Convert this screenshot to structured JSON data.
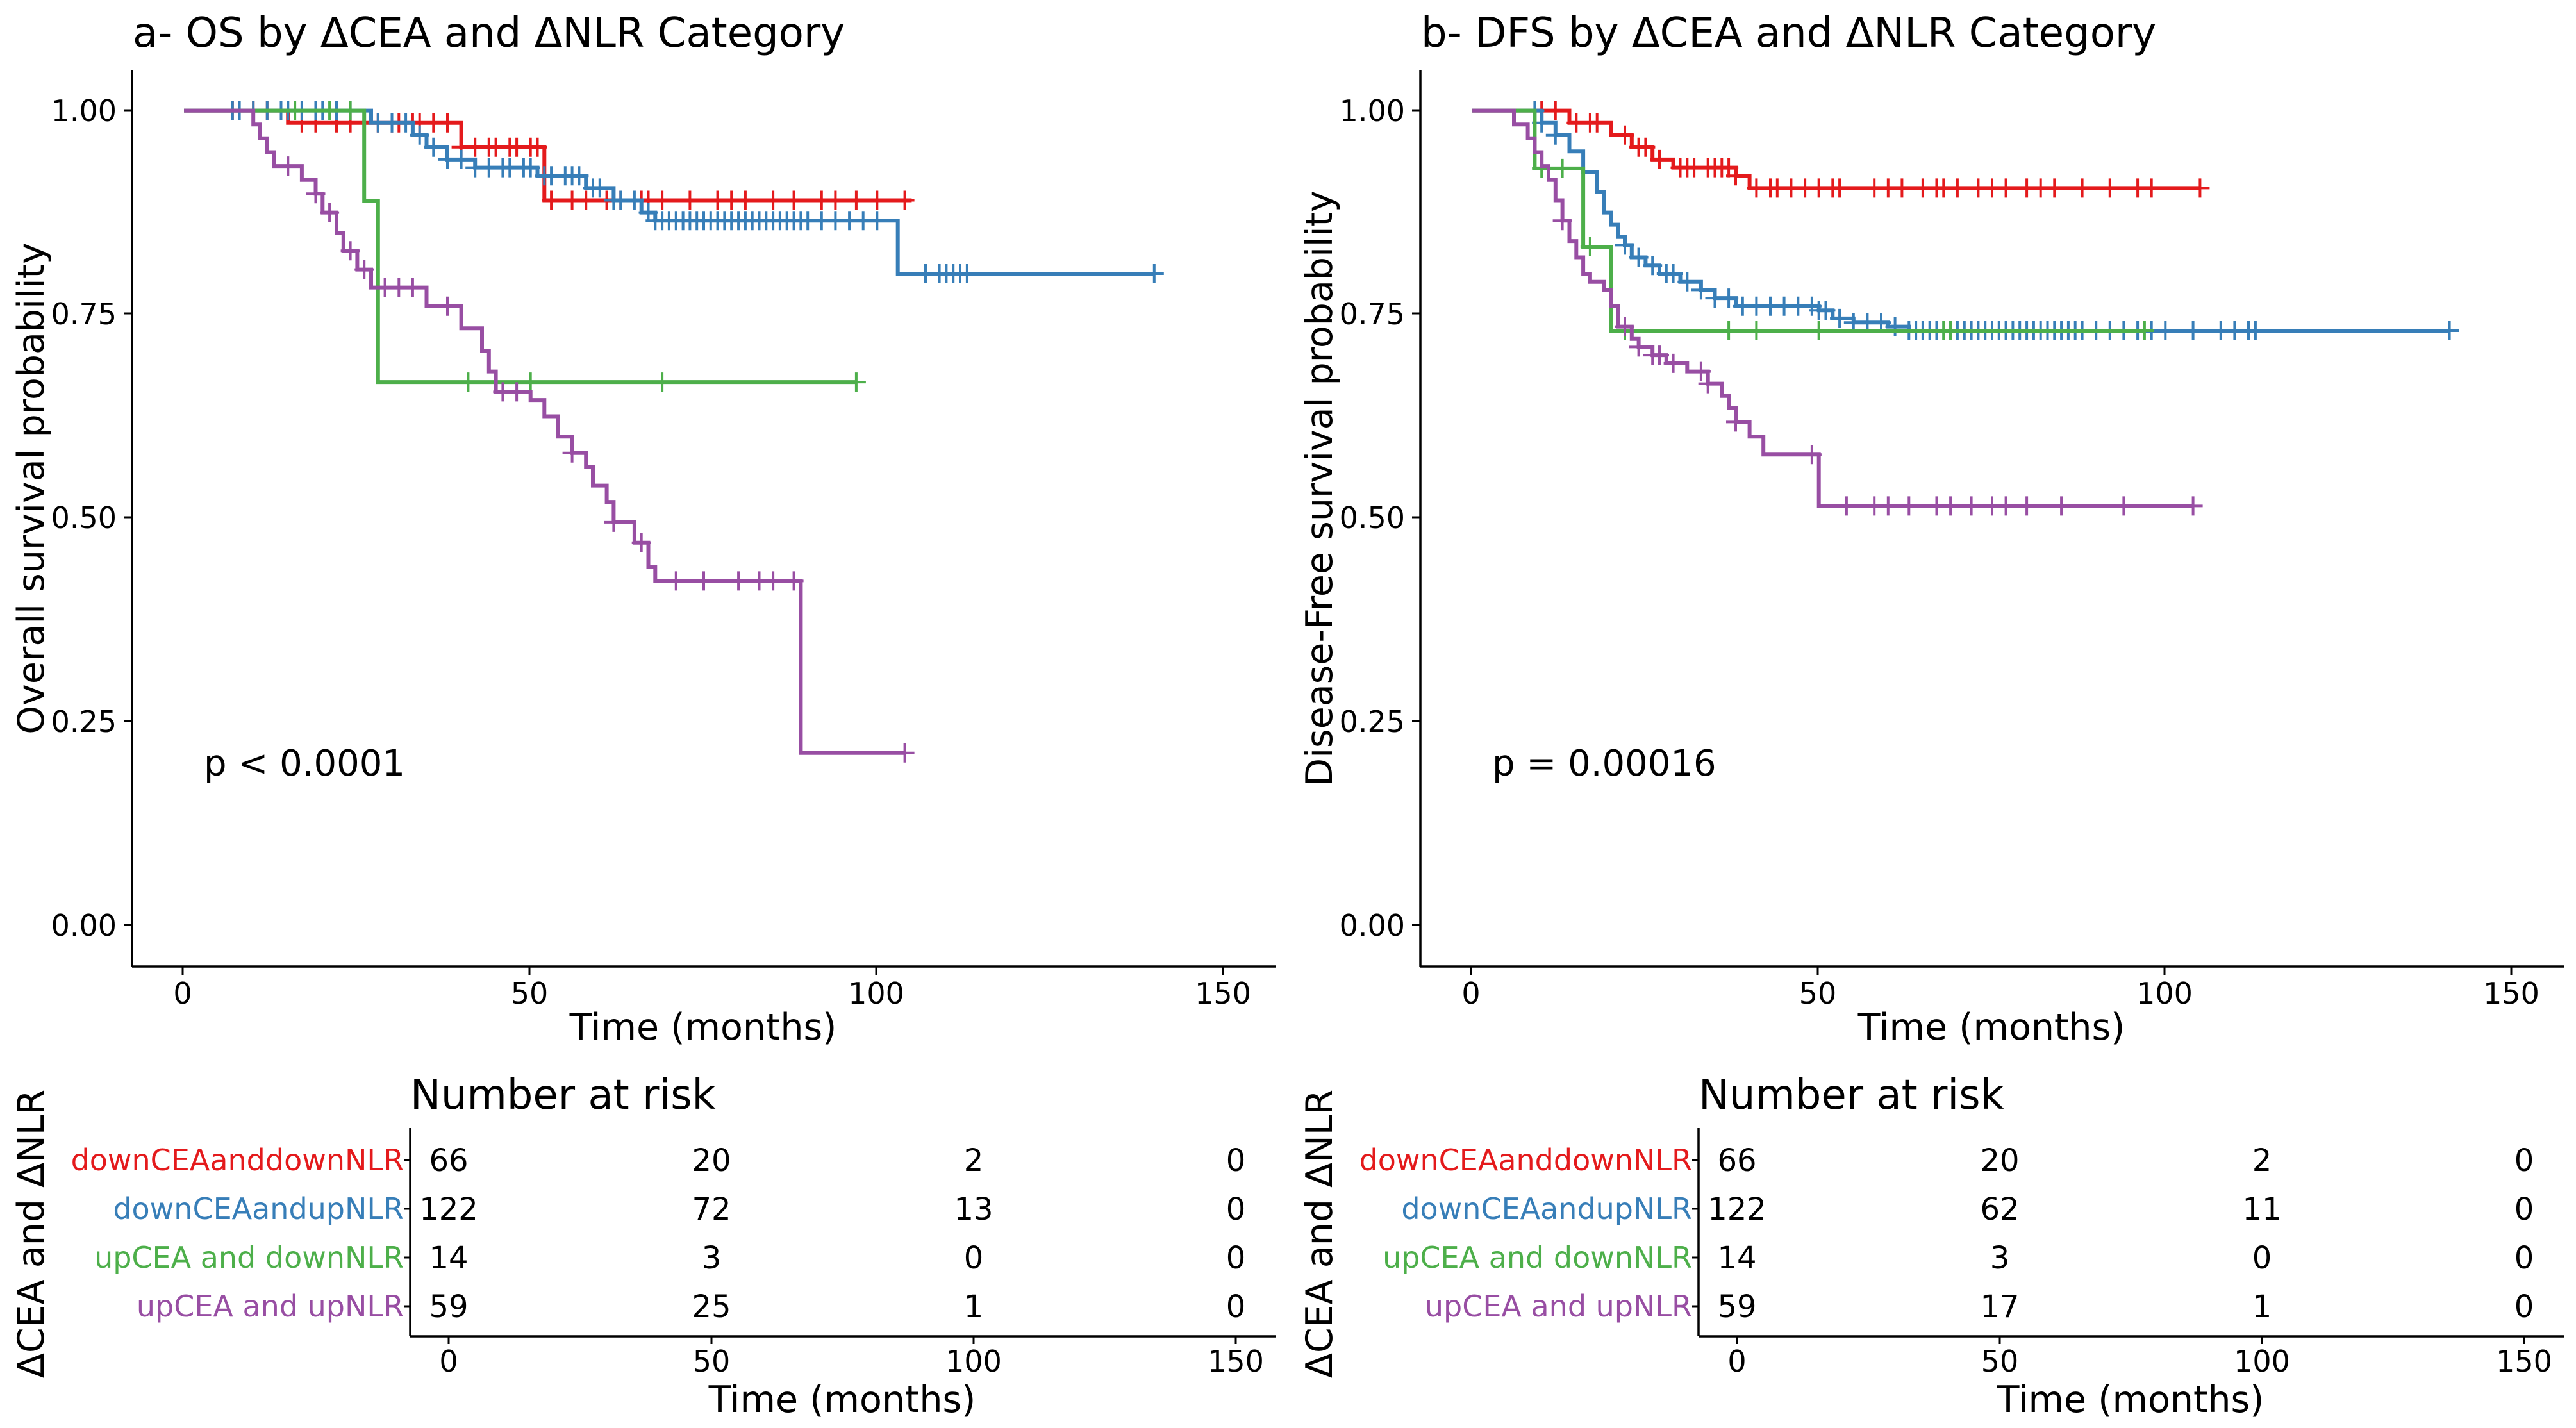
{
  "chart_data": [
    {
      "type": "line",
      "subtype": "kaplan-meier",
      "title": "a- OS by ΔCEA and ΔNLR Category",
      "xlabel": "Time (months)",
      "ylabel": "Overall survival probability",
      "xlim": [
        -7.5,
        157.5
      ],
      "ylim": [
        -0.05,
        1.05
      ],
      "xticks": [
        "0",
        "50",
        "100",
        "150"
      ],
      "yticks": [
        "0.00",
        "0.25",
        "0.50",
        "0.75",
        "1.00"
      ],
      "pvalue": "p < 0.0001",
      "series": [
        {
          "name": "downCEAanddownNLR",
          "color": "#e41a1c",
          "steps": [
            [
              0,
              1
            ],
            [
              15,
              0.985
            ],
            [
              40,
              0.955
            ],
            [
              52,
              0.89
            ],
            [
              105,
              0.89
            ]
          ],
          "censors": [
            7,
            10,
            12,
            17,
            19,
            22,
            24,
            26,
            28,
            30,
            31,
            33,
            34,
            36,
            38,
            40,
            42,
            44,
            45,
            47,
            48,
            50,
            51,
            53,
            56,
            58,
            61,
            63,
            66,
            67,
            69,
            73,
            77,
            79,
            81,
            85,
            88,
            92,
            94,
            97,
            100,
            104
          ]
        },
        {
          "name": "downCEAandupNLR",
          "color": "#377eb8",
          "steps": [
            [
              0,
              1
            ],
            [
              27,
              0.985
            ],
            [
              33,
              0.97
            ],
            [
              35,
              0.955
            ],
            [
              38,
              0.94
            ],
            [
              42,
              0.93
            ],
            [
              51,
              0.92
            ],
            [
              58,
              0.905
            ],
            [
              62,
              0.89
            ],
            [
              66,
              0.875
            ],
            [
              68,
              0.865
            ],
            [
              103,
              0.8
            ],
            [
              140,
              0.8
            ]
          ],
          "censors": [
            7,
            8,
            10,
            12,
            14,
            15,
            17,
            19,
            20,
            22,
            24,
            28,
            30,
            32,
            34,
            36,
            38,
            40,
            42,
            44,
            46,
            47,
            49,
            50,
            52,
            53,
            55,
            56,
            57,
            59,
            60,
            62,
            63,
            65,
            67,
            68,
            69,
            70,
            71,
            72,
            73,
            74,
            75,
            76,
            77,
            78,
            79,
            80,
            81,
            82,
            83,
            84,
            85,
            86,
            87,
            88,
            89,
            90,
            92,
            94,
            96,
            98,
            100,
            107,
            109,
            110,
            111,
            112,
            113,
            140
          ]
        },
        {
          "name": "upCEAanddownNLR",
          "color": "#4daf4a",
          "steps": [
            [
              0,
              1
            ],
            [
              26,
              0.889
            ],
            [
              28,
              0.667
            ],
            [
              97,
              0.667
            ]
          ],
          "censors": [
            16,
            21,
            24,
            41,
            50,
            69,
            97
          ]
        },
        {
          "name": "upCEAandupNLR",
          "color": "#984ea3",
          "steps": [
            [
              0,
              1
            ],
            [
              10,
              0.983
            ],
            [
              11,
              0.966
            ],
            [
              12,
              0.949
            ],
            [
              13,
              0.932
            ],
            [
              17,
              0.915
            ],
            [
              19,
              0.898
            ],
            [
              20,
              0.875
            ],
            [
              22,
              0.85
            ],
            [
              23,
              0.828
            ],
            [
              25,
              0.805
            ],
            [
              27,
              0.783
            ],
            [
              35,
              0.76
            ],
            [
              40,
              0.733
            ],
            [
              43,
              0.705
            ],
            [
              44,
              0.68
            ],
            [
              45,
              0.655
            ],
            [
              50,
              0.645
            ],
            [
              52,
              0.625
            ],
            [
              54,
              0.6
            ],
            [
              56,
              0.58
            ],
            [
              58,
              0.563
            ],
            [
              59,
              0.54
            ],
            [
              61,
              0.52
            ],
            [
              62,
              0.495
            ],
            [
              65,
              0.47
            ],
            [
              67,
              0.44
            ],
            [
              68,
              0.423
            ],
            [
              89,
              0.212
            ],
            [
              104,
              0.212
            ]
          ],
          "censors": [
            15,
            19,
            21,
            24,
            26,
            29,
            31,
            33,
            38,
            46,
            48,
            56,
            62,
            66,
            71,
            75,
            80,
            83,
            85,
            88,
            104
          ]
        }
      ],
      "risk_table": {
        "title": "Number at risk",
        "xlabel": "Time (months)",
        "ylabel": "ΔCEA and ΔNLR",
        "times": [
          "0",
          "50",
          "100",
          "150"
        ],
        "rows": [
          {
            "label": "downCEAanddownNLR",
            "counts": [
              "66",
              "20",
              "2",
              "0"
            ]
          },
          {
            "label": "downCEAandupNLR",
            "counts": [
              "122",
              "72",
              "13",
              "0"
            ]
          },
          {
            "label": "upCEA and downNLR",
            "counts": [
              "14",
              "3",
              "0",
              "0"
            ]
          },
          {
            "label": "upCEA and upNLR",
            "counts": [
              "59",
              "25",
              "1",
              "0"
            ]
          }
        ]
      }
    },
    {
      "type": "line",
      "subtype": "kaplan-meier",
      "title": "b- DFS by ΔCEA and ΔNLR Category",
      "xlabel": "Time (months)",
      "ylabel": "Disease-Free survival probability",
      "xlim": [
        -7.5,
        157.5
      ],
      "ylim": [
        -0.05,
        1.05
      ],
      "xticks": [
        "0",
        "50",
        "100",
        "150"
      ],
      "yticks": [
        "0.00",
        "0.25",
        "0.50",
        "0.75",
        "1.00"
      ],
      "pvalue": "p = 0.00016",
      "series": [
        {
          "name": "downCEAanddownNLR",
          "color": "#e41a1c",
          "steps": [
            [
              0,
              1
            ],
            [
              14,
              0.985
            ],
            [
              20,
              0.97
            ],
            [
              23,
              0.955
            ],
            [
              26,
              0.94
            ],
            [
              29,
              0.93
            ],
            [
              38,
              0.92
            ],
            [
              40,
              0.905
            ],
            [
              105,
              0.905
            ]
          ],
          "censors": [
            10,
            12,
            15,
            17,
            18,
            22,
            24,
            25,
            27,
            30,
            31,
            32,
            34,
            35,
            36,
            37,
            38,
            41,
            43,
            44,
            46,
            48,
            50,
            52,
            53,
            58,
            60,
            62,
            65,
            67,
            68,
            70,
            73,
            75,
            77,
            80,
            82,
            84,
            88,
            92,
            96,
            98,
            105
          ]
        },
        {
          "name": "downCEAandupNLR",
          "color": "#377eb8",
          "steps": [
            [
              0,
              1
            ],
            [
              10,
              0.985
            ],
            [
              12,
              0.97
            ],
            [
              14,
              0.95
            ],
            [
              16,
              0.925
            ],
            [
              18,
              0.9
            ],
            [
              19,
              0.875
            ],
            [
              20,
              0.86
            ],
            [
              21,
              0.845
            ],
            [
              22,
              0.835
            ],
            [
              23,
              0.82
            ],
            [
              25,
              0.81
            ],
            [
              27,
              0.8
            ],
            [
              30,
              0.79
            ],
            [
              33,
              0.78
            ],
            [
              35,
              0.77
            ],
            [
              38,
              0.76
            ],
            [
              50,
              0.755
            ],
            [
              52,
              0.745
            ],
            [
              55,
              0.74
            ],
            [
              60,
              0.735
            ],
            [
              63,
              0.73
            ],
            [
              141,
              0.73
            ]
          ],
          "censors": [
            9,
            10,
            12,
            22,
            24,
            26,
            28,
            29,
            31,
            33,
            35,
            37,
            39,
            41,
            43,
            45,
            47,
            49,
            50,
            51,
            53,
            55,
            57,
            59,
            61,
            63,
            64,
            65,
            66,
            67,
            68,
            69,
            70,
            71,
            72,
            73,
            74,
            75,
            76,
            77,
            78,
            79,
            80,
            81,
            82,
            83,
            84,
            85,
            86,
            87,
            88,
            90,
            92,
            94,
            96,
            98,
            100,
            104,
            108,
            110,
            112,
            113,
            141
          ]
        },
        {
          "name": "upCEAanddownNLR",
          "color": "#4daf4a",
          "steps": [
            [
              0,
              1
            ],
            [
              9,
              0.929
            ],
            [
              16,
              0.833
            ],
            [
              20,
              0.73
            ],
            [
              97,
              0.73
            ]
          ],
          "censors": [
            10,
            13,
            17,
            22,
            37,
            41,
            50,
            68,
            69,
            97
          ]
        },
        {
          "name": "upCEAandupNLR",
          "color": "#984ea3",
          "steps": [
            [
              0,
              1
            ],
            [
              6,
              0.983
            ],
            [
              8,
              0.966
            ],
            [
              9,
              0.949
            ],
            [
              10,
              0.932
            ],
            [
              11,
              0.915
            ],
            [
              12,
              0.89
            ],
            [
              13,
              0.865
            ],
            [
              14,
              0.84
            ],
            [
              15,
              0.82
            ],
            [
              16,
              0.8
            ],
            [
              17,
              0.79
            ],
            [
              19,
              0.78
            ],
            [
              20,
              0.76
            ],
            [
              21,
              0.735
            ],
            [
              23,
              0.72
            ],
            [
              24,
              0.71
            ],
            [
              26,
              0.7
            ],
            [
              28,
              0.69
            ],
            [
              31,
              0.68
            ],
            [
              34,
              0.665
            ],
            [
              36,
              0.65
            ],
            [
              37,
              0.635
            ],
            [
              38,
              0.618
            ],
            [
              40,
              0.6
            ],
            [
              42,
              0.578
            ],
            [
              48,
              0.578
            ],
            [
              50,
              0.515
            ],
            [
              104,
              0.515
            ]
          ],
          "censors": [
            13,
            22,
            24,
            26,
            27,
            29,
            33,
            34,
            38,
            49,
            54,
            58,
            60,
            63,
            67,
            69,
            72,
            75,
            77,
            80,
            85,
            94,
            104
          ]
        }
      ],
      "risk_table": {
        "title": "Number at risk",
        "xlabel": "Time (months)",
        "ylabel": "ΔCEA and ΔNLR",
        "times": [
          "0",
          "50",
          "100",
          "150"
        ],
        "rows": [
          {
            "label": "downCEAanddownNLR",
            "counts": [
              "66",
              "20",
              "2",
              "0"
            ]
          },
          {
            "label": "downCEAandupNLR",
            "counts": [
              "122",
              "62",
              "11",
              "0"
            ]
          },
          {
            "label": "upCEA and downNLR",
            "counts": [
              "14",
              "3",
              "0",
              "0"
            ]
          },
          {
            "label": "upCEA and upNLR",
            "counts": [
              "59",
              "17",
              "1",
              "0"
            ]
          }
        ]
      }
    }
  ]
}
